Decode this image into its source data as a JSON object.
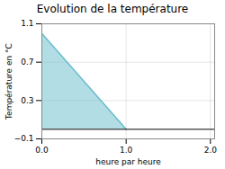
{
  "chart_data": {
    "type": "area",
    "title": "Evolution de la température",
    "xlabel": "heure par heure",
    "ylabel": "Température en °C",
    "x": [
      0,
      1,
      1
    ],
    "values": [
      1.0,
      0.0,
      0.0
    ],
    "color": "#66bbcc",
    "xlim": [
      0,
      2.05
    ],
    "xticks": [
      0,
      1,
      2
    ],
    "ylim": [
      -0.1,
      1.1
    ],
    "yticks": [
      -0.1,
      0.3,
      0.7,
      1.1
    ],
    "grid": true
  }
}
